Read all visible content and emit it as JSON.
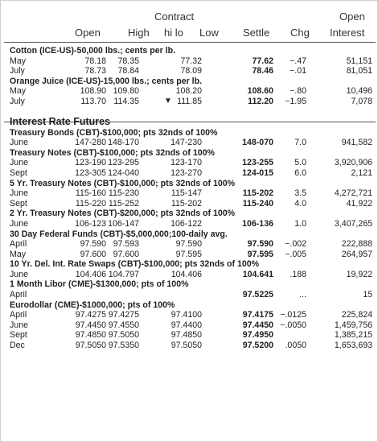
{
  "header": {
    "contract": "Contract",
    "open": "Open",
    "high": "High",
    "hilo": "hi lo",
    "low": "Low",
    "settle": "Settle",
    "chg": "Chg",
    "open2": "Open",
    "interest": "Interest"
  },
  "blocks": [
    {
      "title": "Cotton (ICE-US)-50,000 lbs.; cents per lb.",
      "rows": [
        {
          "label": "May",
          "open": "78.18",
          "high": "78.35",
          "mark": "",
          "low": "77.32",
          "settle": "77.62",
          "chg": "−.47",
          "oi": "51,151"
        },
        {
          "label": "July",
          "open": "78.73",
          "high": "78.84",
          "mark": "",
          "low": "78.09",
          "settle": "78.46",
          "chg": "−.01",
          "oi": "81,051"
        }
      ]
    },
    {
      "title": "Orange Juice (ICE-US)-15,000 lbs.; cents per lb.",
      "rows": [
        {
          "label": "May",
          "open": "108.90",
          "high": "109.80",
          "mark": "",
          "low": "108.20",
          "settle": "108.60",
          "chg": "−.80",
          "oi": "10,496"
        },
        {
          "label": "July",
          "open": "113.70",
          "high": "114.35",
          "mark": "▼",
          "low": "111.85",
          "settle": "112.20",
          "chg": "−1.95",
          "oi": "7,078"
        }
      ]
    },
    {
      "section": "Interest Rate Futures"
    },
    {
      "title": "Treasury Bonds (CBT)-$100,000; pts 32nds of 100%",
      "rows": [
        {
          "label": "June",
          "open": "147-280",
          "high": "148-170",
          "mark": "",
          "low": "147-230",
          "settle": "148-070",
          "chg": "7.0",
          "oi": "941,582"
        }
      ]
    },
    {
      "title": "Treasury Notes (CBT)-$100,000; pts 32nds of 100%",
      "rows": [
        {
          "label": "June",
          "open": "123-190",
          "high": "123-295",
          "mark": "",
          "low": "123-170",
          "settle": "123-255",
          "chg": "5.0",
          "oi": "3,920,906"
        },
        {
          "label": "Sept",
          "open": "123-305",
          "high": "124-040",
          "mark": "",
          "low": "123-270",
          "settle": "124-015",
          "chg": "6.0",
          "oi": "2,121"
        }
      ]
    },
    {
      "title": "5 Yr. Treasury Notes (CBT)-$100,000; pts 32nds of 100%",
      "rows": [
        {
          "label": "June",
          "open": "115-160",
          "high": "115-230",
          "mark": "",
          "low": "115-147",
          "settle": "115-202",
          "chg": "3.5",
          "oi": "4,272,721"
        },
        {
          "label": "Sept",
          "open": "115-220",
          "high": "115-252",
          "mark": "",
          "low": "115-202",
          "settle": "115-240",
          "chg": "4.0",
          "oi": "41,922"
        }
      ]
    },
    {
      "title": "2 Yr. Treasury Notes (CBT)-$200,000; pts 32nds of 100%",
      "rows": [
        {
          "label": "June",
          "open": "106-123",
          "high": "106-147",
          "mark": "",
          "low": "106-122",
          "settle": "106-136",
          "chg": "1.0",
          "oi": "3,407,265"
        }
      ]
    },
    {
      "title": "30 Day Federal Funds (CBT)-$5,000,000;100-daily avg.",
      "rows": [
        {
          "label": "April",
          "open": "97.590",
          "high": "97.593",
          "mark": "",
          "low": "97.590",
          "settle": "97.590",
          "chg": "−.002",
          "oi": "222,888"
        },
        {
          "label": "May",
          "open": "97.600",
          "high": "97.600",
          "mark": "",
          "low": "97.595",
          "settle": "97.595",
          "chg": "−.005",
          "oi": "264,957"
        }
      ]
    },
    {
      "title": "10 Yr. Del. Int. Rate Swaps (CBT)-$100,000; pts 32nds of 100%",
      "rows": [
        {
          "label": "June",
          "open": "104.406",
          "high": "104.797",
          "mark": "",
          "low": "104.406",
          "settle": "104.641",
          "chg": ".188",
          "oi": "19,922"
        }
      ]
    },
    {
      "title": "1 Month Libor (CME)-$1300,000; pts of 100%",
      "rows": [
        {
          "label": "April",
          "open": "",
          "high": "",
          "mark": "",
          "low": "",
          "settle": "97.5225",
          "chg": "...",
          "oi": "15"
        }
      ]
    },
    {
      "title": "Eurodollar (CME)-$1000,000; pts of 100%",
      "rows": [
        {
          "label": "April",
          "open": "97.4275",
          "high": "97.4275",
          "mark": "",
          "low": "97.4100",
          "settle": "97.4175",
          "chg": "−.0125",
          "oi": "225,824"
        },
        {
          "label": "June",
          "open": "97.4450",
          "high": "97.4550",
          "mark": "",
          "low": "97.4400",
          "settle": "97.4450",
          "chg": "−.0050",
          "oi": "1,459,756"
        },
        {
          "label": "Sept",
          "open": "97.4850",
          "high": "97.5050",
          "mark": "",
          "low": "97.4850",
          "settle": "97.4950",
          "chg": "",
          "oi": "1,385,215"
        },
        {
          "label": "Dec",
          "open": "97.5050",
          "high": "97.5350",
          "mark": "",
          "low": "97.5050",
          "settle": "97.5200",
          "chg": ".0050",
          "oi": "1,653,693"
        }
      ]
    }
  ]
}
